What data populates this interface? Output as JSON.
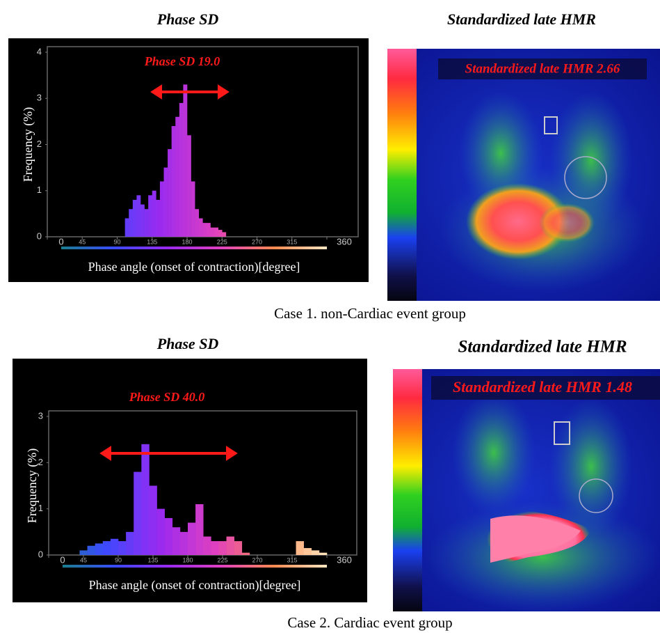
{
  "cases": [
    {
      "histogram_title": "Phase SD",
      "image_title": "Standardized late HMR",
      "image_label": "Standardized late HMR 2.66",
      "caption": "Case 1. non-Cardiac event group"
    },
    {
      "histogram_title": "Phase SD",
      "image_title": "Standardized late HMR",
      "image_label": "Standardized late HMR 1.48",
      "caption": "Case 2. Cardiac event group"
    }
  ],
  "chart_data": [
    {
      "type": "histogram",
      "annotation": "Phase SD 19.0",
      "xlabel": "Phase angle (onset of contraction)[degree]",
      "ylabel": "Frequency (%)",
      "bins": [
        100,
        105,
        110,
        115,
        120,
        125,
        130,
        135,
        140,
        145,
        150,
        155,
        160,
        165,
        170,
        175,
        180,
        185,
        190,
        195,
        200,
        205,
        210,
        215,
        220,
        225,
        230
      ],
      "values": [
        0.4,
        0.6,
        0.8,
        0.9,
        0.7,
        0.6,
        0.9,
        1.0,
        0.8,
        1.2,
        1.5,
        1.9,
        2.4,
        2.6,
        2.9,
        3.3,
        2.2,
        1.2,
        0.6,
        0.4,
        0.3,
        0.3,
        0.2,
        0.2,
        0.15,
        0.1
      ],
      "xlim": [
        0,
        360
      ],
      "ylim": [
        0,
        4
      ],
      "xticks": [
        0,
        45,
        90,
        135,
        180,
        225,
        270,
        315,
        360
      ],
      "yticks": [
        0,
        1,
        2,
        3,
        4
      ],
      "colorscale": [
        "#1a7f8f",
        "#3a4aff",
        "#9a2af0",
        "#e040c0",
        "#ff8a50",
        "#ffe6c0"
      ]
    },
    {
      "type": "histogram",
      "annotation": "Phase SD 40.0",
      "xlabel": "Phase angle (onset of contraction)[degree]",
      "ylabel": "Frequency (%)",
      "bins": [
        40,
        50,
        60,
        70,
        80,
        90,
        100,
        110,
        120,
        130,
        140,
        150,
        160,
        170,
        180,
        190,
        200,
        210,
        220,
        230,
        240,
        250,
        260,
        270,
        280,
        290,
        300,
        310,
        320,
        330,
        340,
        350,
        360
      ],
      "values": [
        0.1,
        0.2,
        0.25,
        0.3,
        0.35,
        0.3,
        0.5,
        1.8,
        2.4,
        1.5,
        1.0,
        0.8,
        0.6,
        0.5,
        0.7,
        1.1,
        0.4,
        0.3,
        0.3,
        0.4,
        0.3,
        0.05,
        0,
        0,
        0,
        0,
        0,
        0,
        0.3,
        0.15,
        0.1,
        0.05
      ],
      "xlim": [
        0,
        360
      ],
      "ylim": [
        0,
        3
      ],
      "xticks": [
        0,
        45,
        90,
        135,
        180,
        225,
        270,
        315,
        360
      ],
      "yticks": [
        0,
        1,
        2,
        3
      ],
      "colorscale": [
        "#1a7f8f",
        "#3a4aff",
        "#9a2af0",
        "#e040c0",
        "#ff8a50",
        "#ffe6c0"
      ]
    }
  ]
}
